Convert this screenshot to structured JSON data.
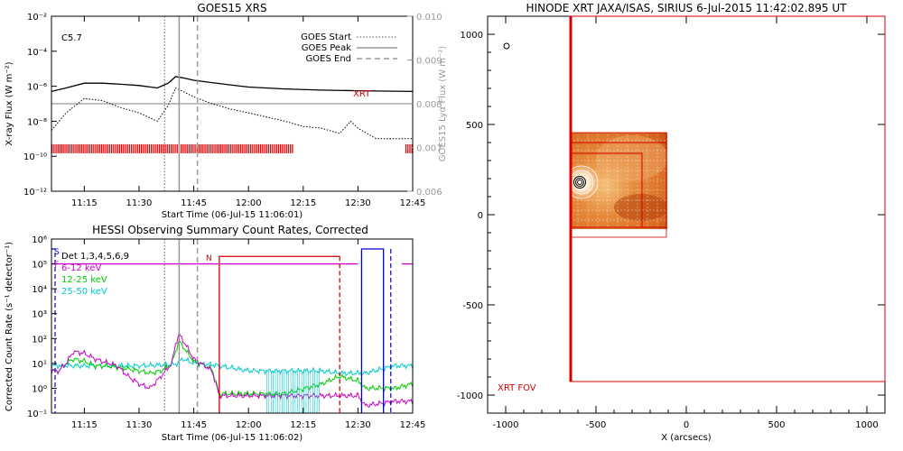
{
  "goes": {
    "title": "GOES15 XRS",
    "xlabel": "Start Time (06-Jul-15 11:06:01)",
    "ylabel_left": "X-ray Flux (W m⁻²)",
    "ylabel_right": "GOES15 Lyα Flux (W m⁻²)",
    "class_label": "C5.7",
    "xrt_label": "XRT",
    "legend": [
      {
        "label": "GOES Start",
        "style": "dotted"
      },
      {
        "label": "GOES Peak",
        "style": "solid"
      },
      {
        "label": "GOES End",
        "style": "dashed"
      }
    ],
    "y_ticks_left": [
      "10⁻²",
      "10⁻⁴",
      "10⁻⁶",
      "10⁻⁸",
      "10⁻¹⁰",
      "10⁻¹²"
    ],
    "y_ticks_right": [
      "0.010",
      "0.009",
      "0.008",
      "0.007",
      "0.006"
    ]
  },
  "hessi": {
    "title": "HESSI Observing Summary Count Rates, Corrected",
    "xlabel": "Start Time (06-Jul-15 11:06:02)",
    "ylabel": "Corrected Count Rate (s⁻¹ detector⁻¹)",
    "det_label": "Det 1,3,4,5,6,9",
    "band_labels": [
      "6-12 keV",
      "12-25 keV",
      "25-50 keV"
    ],
    "flag_labels": [
      "S",
      "F",
      "N"
    ],
    "y_ticks": [
      "10⁶",
      "10⁵",
      "10⁴",
      "10³",
      "10²",
      "10¹",
      "10⁰",
      "10⁻¹"
    ]
  },
  "x_ticks": [
    "11:15",
    "11:30",
    "11:45",
    "12:00",
    "12:15",
    "12:30",
    "12:45"
  ],
  "xrt": {
    "title": "HINODE XRT JAXA/ISAS, SIRIUS  6-Jul-2015 11:42:02.895 UT",
    "xlabel": "X (arcsecs)",
    "fov_label": "XRT FOV",
    "x_ticks": [
      "-1000",
      "-500",
      "0",
      "500",
      "1000"
    ],
    "y_ticks": [
      "1000",
      "500",
      "0",
      "-500",
      "-1000"
    ]
  },
  "chart_data": [
    {
      "type": "line",
      "title": "GOES15 XRS",
      "x_unit": "UT time, 06-Jul-2015",
      "xlim": [
        "11:06",
        "12:45"
      ],
      "ylim": [
        1e-12,
        0.01
      ],
      "y_scale": "log",
      "ylim_right": [
        0.006,
        0.01
      ],
      "goes_start": "11:37",
      "goes_peak": "11:41",
      "goes_end": "11:46",
      "series": [
        {
          "name": "",
          "role": "long channel 1-8 Å",
          "color": "#000000",
          "x": [
            "11:06",
            "11:10",
            "11:15",
            "11:20",
            "11:25",
            "11:30",
            "11:35",
            "11:38",
            "11:40",
            "11:42",
            "11:45",
            "11:50",
            "11:55",
            "12:00",
            "12:10",
            "12:20",
            "12:30",
            "12:45"
          ],
          "y": [
            5e-07,
            8e-07,
            1.5e-06,
            1.5e-06,
            1.3e-06,
            1.1e-06,
            8e-07,
            1.5e-06,
            3.5e-06,
            3e-06,
            2.2e-06,
            1.6e-06,
            1.2e-06,
            9e-07,
            7e-07,
            6e-07,
            5.5e-07,
            5e-07
          ]
        },
        {
          "name": "",
          "role": "short channel 0.5-4 Å",
          "color": "#000000",
          "x": [
            "11:06",
            "11:10",
            "11:15",
            "11:20",
            "11:25",
            "11:30",
            "11:35",
            "11:38",
            "11:40",
            "11:42",
            "11:45",
            "11:50",
            "11:55",
            "12:00",
            "12:10",
            "12:15",
            "12:20",
            "12:25",
            "12:28",
            "12:30",
            "12:35",
            "12:45"
          ],
          "y": [
            3e-09,
            3e-08,
            2e-07,
            1.5e-07,
            6e-08,
            3e-08,
            1e-08,
            8e-08,
            8e-07,
            5e-07,
            2.5e-07,
            1e-07,
            5e-08,
            3e-08,
            1e-08,
            5e-09,
            4e-09,
            2e-09,
            1e-08,
            4e-09,
            1e-09,
            1e-09
          ]
        },
        {
          "name": "",
          "role": "Lyα (right axis)",
          "color": "#999999",
          "x": [
            "11:06",
            "12:45"
          ],
          "y": [
            0.008,
            0.008
          ]
        }
      ],
      "xrt_coverage": [
        [
          "11:06",
          "12:12"
        ],
        [
          "12:43",
          "12:45"
        ]
      ]
    },
    {
      "type": "line",
      "title": "HESSI Observing Summary Count Rates, Corrected",
      "x_unit": "UT time, 06-Jul-2015",
      "xlim": [
        "11:06",
        "12:45"
      ],
      "ylim": [
        0.1,
        1000000.0
      ],
      "y_scale": "log",
      "series": [
        {
          "name": "6-12 keV",
          "color": "#cc00cc",
          "x": [
            "11:06",
            "11:08",
            "11:10",
            "11:12",
            "11:15",
            "11:18",
            "11:20",
            "11:24",
            "11:27",
            "11:30",
            "11:33",
            "11:36",
            "11:39",
            "11:40",
            "11:41",
            "11:43",
            "11:45",
            "11:48",
            "11:50",
            "11:52",
            "12:12",
            "12:30",
            "12:32",
            "12:40",
            "12:45"
          ],
          "y": [
            5,
            5,
            10,
            30,
            25,
            15,
            12,
            8,
            3,
            1.5,
            1,
            3,
            10,
            60,
            150,
            50,
            15,
            8,
            5,
            0.5,
            0.5,
            0.5,
            0.2,
            0.3,
            0.3
          ]
        },
        {
          "name": "12-25 keV",
          "color": "#00cc00",
          "x": [
            "11:06",
            "11:08",
            "11:10",
            "11:12",
            "11:15",
            "11:18",
            "11:20",
            "11:24",
            "11:27",
            "11:30",
            "11:33",
            "11:36",
            "11:39",
            "11:40",
            "11:41",
            "11:43",
            "11:45",
            "11:48",
            "11:50",
            "11:52",
            "12:00",
            "12:10",
            "12:20",
            "12:25",
            "12:30",
            "12:32",
            "12:40",
            "12:45"
          ],
          "y": [
            5,
            5,
            10,
            15,
            12,
            8,
            8,
            7,
            6,
            5,
            4,
            5,
            10,
            30,
            80,
            30,
            12,
            8,
            6,
            0.6,
            0.6,
            0.6,
            1.5,
            3,
            2,
            1,
            1,
            1.5
          ]
        },
        {
          "name": "25-50 keV",
          "color": "#00cccc",
          "x": [
            "11:06",
            "11:10",
            "11:20",
            "11:30",
            "11:40",
            "11:42",
            "11:45",
            "11:50",
            "11:52",
            "12:00",
            "12:15",
            "12:20",
            "12:25",
            "12:30",
            "12:32",
            "12:40",
            "12:45"
          ],
          "y": [
            8,
            8,
            8,
            8,
            9,
            15,
            10,
            9,
            8,
            5,
            5,
            5,
            4,
            4,
            4,
            8,
            8
          ]
        }
      ],
      "flags": {
        "eclipse_start": "12:31",
        "eclipse_end": "12:37",
        "attenuator_state_1": "11:52",
        "attenuator_state_2": "12:25"
      }
    },
    {
      "type": "image",
      "title": "HINODE XRT JAXA/ISAS, SIRIUS  6-Jul-2015 11:42:02.895 UT",
      "xlabel": "X (arcsecs)",
      "xlim": [
        -1100,
        1100
      ],
      "ylim": [
        -1100,
        1100
      ],
      "image_box": [
        [
          -640,
          -90
        ],
        [
          -120,
          470
        ]
      ],
      "fov_box": [
        [
          -640,
          -940
        ],
        [
          1100,
          1040
        ]
      ],
      "inner_boxes": [
        [
          [
            -640,
            -90
          ],
          [
            -120,
            420
          ]
        ],
        [
          [
            -640,
            -60
          ],
          [
            -250,
            330
          ]
        ]
      ],
      "source_center": [
        -600,
        190
      ]
    }
  ]
}
